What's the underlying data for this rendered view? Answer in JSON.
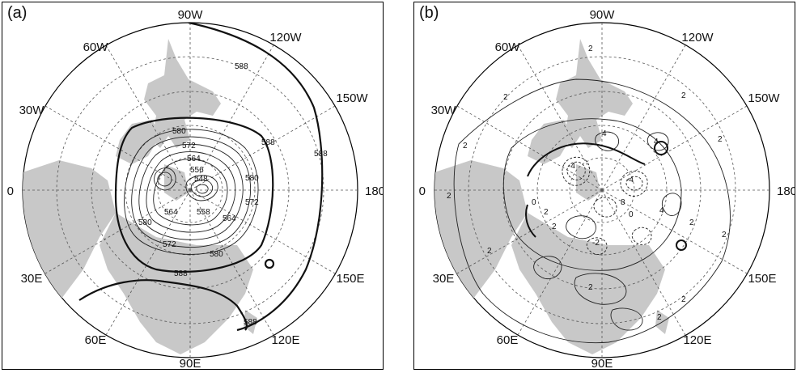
{
  "panels": [
    {
      "id": "a",
      "label": "(a)",
      "lon_labels": [
        "90W",
        "120W",
        "150W",
        "180",
        "150E",
        "120E",
        "90E",
        "60E",
        "30E",
        "0",
        "30W",
        "60W"
      ],
      "contour_labels": [
        "588",
        "588",
        "588",
        "580",
        "572",
        "564",
        "556",
        "548",
        "580",
        "572",
        "564",
        "558",
        "564",
        "580",
        "572",
        "580",
        "588",
        "588"
      ]
    },
    {
      "id": "b",
      "label": "(b)",
      "lon_labels": [
        "90W",
        "120W",
        "150W",
        "180",
        "150E",
        "120E",
        "90E",
        "60E",
        "30E",
        "0",
        "30W",
        "60W"
      ],
      "contour_labels": [
        "2",
        "2",
        "2",
        "2",
        "2",
        "2",
        "2",
        "4",
        "4",
        "-4",
        "0",
        "-4",
        "8",
        "0",
        "4",
        "2",
        "-2",
        "2",
        "2",
        "2",
        "2",
        "2",
        "2"
      ]
    }
  ],
  "colors": {
    "land": "#c8c8c8",
    "contour": "#222222",
    "grid": "#555555"
  }
}
